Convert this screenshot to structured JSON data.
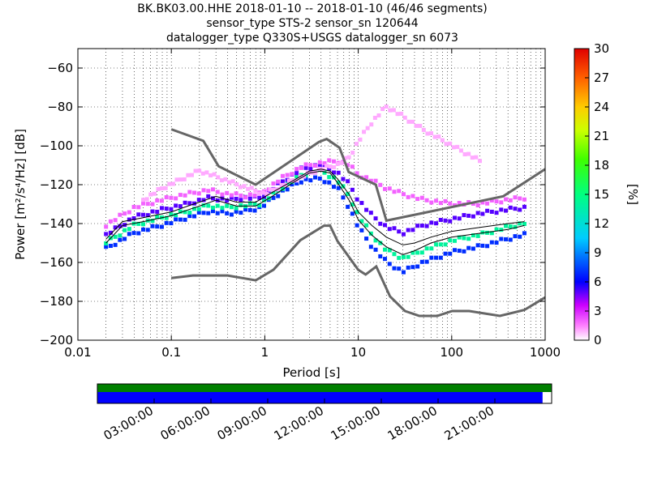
{
  "header": {
    "title_line1": "BK.BK03.00.HHE   2018-01-10 -- 2018-01-10  (46/46 segments)",
    "title_line2": "sensor_type STS-2 sensor_sn 120644",
    "title_line3": "datalogger_type Q330S+USGS datalogger_sn 6073"
  },
  "chart_data": {
    "type": "heatmap",
    "title": "BK.BK03.00.HHE   2018-01-10 -- 2018-01-10  (46/46 segments)",
    "xlabel": "Period [s]",
    "ylabel": "Power [m²/s⁴/Hz] [dB]",
    "x_scale": "log",
    "xlim": [
      0.01,
      1000
    ],
    "ylim": [
      -200,
      -50
    ],
    "x_ticks": [
      0.01,
      0.1,
      1,
      10,
      100,
      1000
    ],
    "x_tick_labels": [
      "0.01",
      "0.1",
      "1",
      "10",
      "100",
      "1000"
    ],
    "y_ticks": [
      -200,
      -180,
      -160,
      -140,
      -120,
      -100,
      -80,
      -60
    ],
    "y_tick_labels": [
      "−200",
      "−180",
      "−160",
      "−140",
      "−120",
      "−100",
      "−80",
      "−60"
    ],
    "grid": true,
    "colorbar": {
      "label": "[%]",
      "range": [
        0,
        30
      ],
      "ticks": [
        0,
        3,
        6,
        9,
        12,
        15,
        18,
        21,
        24,
        27,
        30
      ],
      "tick_labels": [
        "0",
        "3",
        "6",
        "9",
        "12",
        "15",
        "18",
        "21",
        "24",
        "27",
        "30"
      ]
    },
    "mode": {
      "period": [
        0.02,
        0.03,
        0.05,
        0.1,
        0.15,
        0.2,
        0.3,
        0.5,
        0.8,
        1.2,
        2,
        3,
        4,
        5,
        6,
        8,
        10,
        14,
        20,
        30,
        40,
        60,
        100,
        200,
        400,
        600
      ],
      "power": [
        -150,
        -141,
        -139,
        -136,
        -133,
        -131,
        -128,
        -131,
        -131,
        -126,
        -119,
        -114,
        -113,
        -114,
        -119,
        -128,
        -138,
        -146,
        -152,
        -156,
        -154,
        -150,
        -147,
        -145,
        -143,
        -141
      ]
    },
    "mean": {
      "period": [
        0.02,
        0.03,
        0.05,
        0.1,
        0.15,
        0.2,
        0.3,
        0.5,
        0.8,
        1.2,
        2,
        3,
        4,
        5,
        6,
        8,
        10,
        14,
        20,
        30,
        40,
        60,
        100,
        200,
        400,
        600
      ],
      "power": [
        -148,
        -139,
        -137,
        -134,
        -131,
        -129,
        -126,
        -129,
        -129,
        -124,
        -118,
        -113,
        -112,
        -113,
        -117,
        -125,
        -134,
        -141,
        -147,
        -151,
        -150,
        -147,
        -144,
        -142,
        -140,
        -139
      ]
    },
    "nhnm": {
      "period": [
        0.1,
        0.22,
        0.32,
        0.8,
        3.8,
        4.6,
        6.3,
        7.9,
        15.4,
        20,
        354.8,
        1000
      ],
      "power": [
        -91.5,
        -97.4,
        -110.5,
        -120,
        -98,
        -96.5,
        -101,
        -113.5,
        -120,
        -138.5,
        -126,
        -112
      ]
    },
    "nlnm": {
      "period": [
        0.1,
        0.17,
        0.4,
        0.8,
        1.24,
        2.4,
        4.3,
        5,
        6,
        10,
        12,
        15.6,
        21.9,
        31.6,
        45,
        70,
        101,
        154,
        328,
        600,
        1000
      ],
      "power": [
        -168,
        -166.7,
        -166.7,
        -169.2,
        -163.7,
        -148.6,
        -141.1,
        -141.1,
        -149,
        -163.8,
        -166.2,
        -162.1,
        -177.5,
        -185,
        -187.5,
        -187.5,
        -185,
        -185,
        -187.5,
        -184.4,
        -178
      ]
    },
    "pdf_bands": [
      {
        "period": [
          0.02,
          0.04,
          0.08,
          0.15,
          0.25,
          0.4,
          0.6,
          0.9,
          1.5,
          2.5,
          4,
          6,
          8,
          10,
          14,
          20,
          30,
          50,
          100,
          200,
          400,
          600
        ],
        "power": [
          -153,
          -145,
          -141,
          -137,
          -134,
          -135,
          -134,
          -132,
          -124,
          -118,
          -117,
          -122,
          -132,
          -142,
          -152,
          -160,
          -165,
          -160,
          -155,
          -152,
          -148,
          -146
        ],
        "percent": 7
      },
      {
        "period": [
          0.02,
          0.04,
          0.08,
          0.15,
          0.25,
          0.4,
          0.6,
          0.9,
          1.5,
          2.5,
          4,
          6,
          8,
          10,
          14,
          20,
          30,
          50,
          100,
          200,
          400,
          600
        ],
        "power": [
          -150,
          -141,
          -137,
          -134,
          -131,
          -132,
          -131,
          -130,
          -122,
          -115,
          -113,
          -118,
          -126,
          -136,
          -146,
          -154,
          -158,
          -154,
          -149,
          -146,
          -142,
          -140
        ],
        "percent": 14
      },
      {
        "period": [
          0.02,
          0.04,
          0.08,
          0.15,
          0.25,
          0.4,
          0.6,
          0.9,
          1.5,
          2.5,
          4,
          6,
          8,
          10,
          14,
          20,
          30,
          50,
          100,
          200,
          400,
          600
        ],
        "power": [
          -146,
          -137,
          -133,
          -130,
          -127,
          -128,
          -127,
          -127,
          -119,
          -112,
          -110,
          -114,
          -120,
          -128,
          -136,
          -142,
          -145,
          -141,
          -138,
          -135,
          -133,
          -132
        ],
        "percent": 5
      },
      {
        "period": [
          0.02,
          0.04,
          0.08,
          0.15,
          0.25,
          0.4,
          0.6,
          0.9,
          1.5,
          2.5,
          4,
          6,
          8,
          10,
          14,
          20,
          30,
          50,
          100,
          200,
          400,
          600
        ],
        "power": [
          -141,
          -132,
          -128,
          -125,
          -123,
          -125,
          -126,
          -125,
          -117,
          -111,
          -109,
          -108,
          -110,
          -115,
          -118,
          -122,
          -125,
          -128,
          -130,
          -130,
          -128,
          -127
        ],
        "percent": 2
      },
      {
        "period": [
          0.05,
          0.08,
          0.12,
          0.2,
          0.3,
          0.5,
          1,
          2,
          4,
          6,
          8,
          10,
          14,
          20,
          30,
          50,
          100,
          200
        ],
        "power": [
          -128,
          -122,
          -118,
          -113,
          -116,
          -120,
          -125,
          -118,
          -112,
          -110,
          -106,
          -98,
          -88,
          -80,
          -85,
          -92,
          -100,
          -108
        ],
        "percent": 1
      }
    ],
    "data_availability": {
      "time_labels": [
        "03:00:00",
        "06:00:00",
        "09:00:00",
        "12:00:00",
        "15:00:00",
        "18:00:00",
        "21:00:00"
      ],
      "coverage_fraction": 0.98,
      "colors": {
        "top": "#008000",
        "bottom": "#0000ff"
      }
    }
  }
}
